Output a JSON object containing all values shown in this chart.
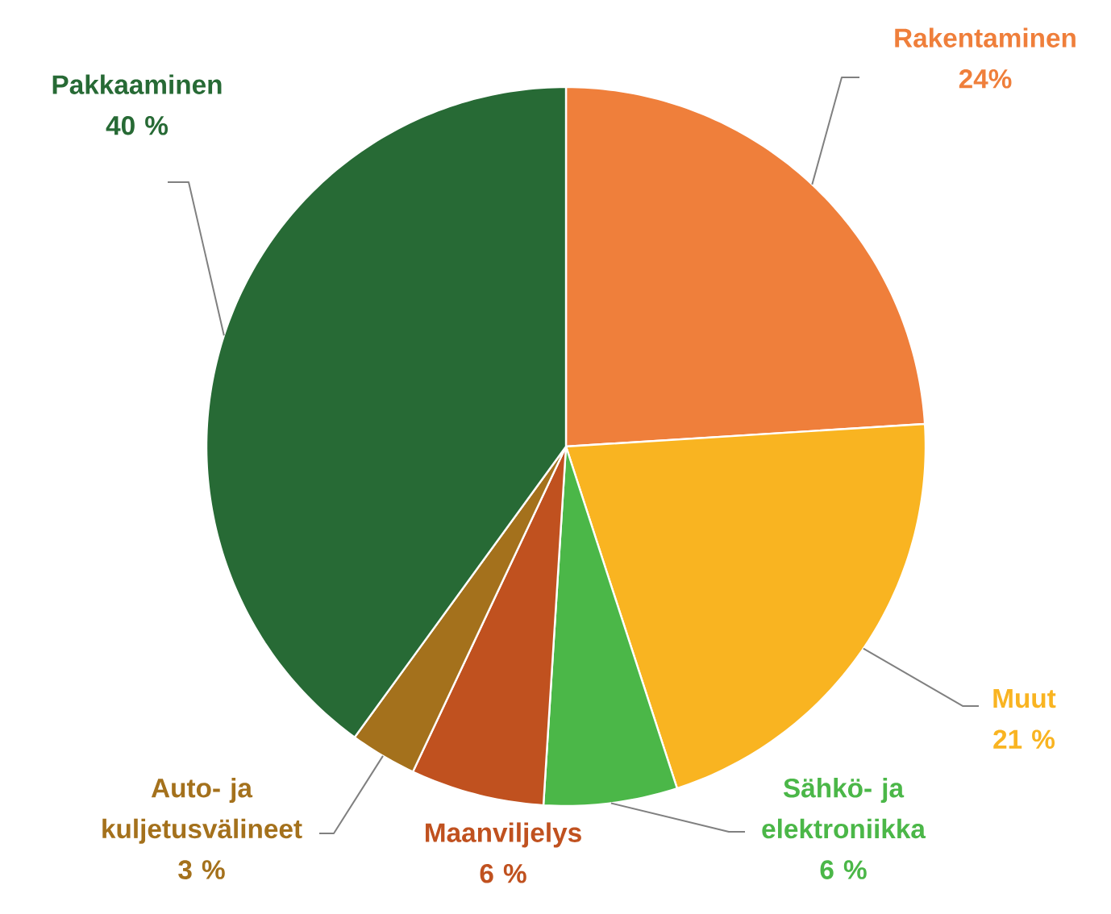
{
  "chart_data": {
    "type": "pie",
    "categories": [
      "Rakentaminen",
      "Muut",
      "Sähkö- ja elektroniikka",
      "Maanviljelys",
      "Auto- ja kuljetusvälineet",
      "Pakkaaminen"
    ],
    "values": [
      24,
      21,
      6,
      6,
      3,
      40
    ],
    "colors": [
      "#ef7f3b",
      "#f9b421",
      "#4bb748",
      "#c0511f",
      "#a4711c",
      "#276a35"
    ],
    "value_labels": [
      "24%",
      "21 %",
      "6 %",
      "6 %",
      "3 %",
      "40 %"
    ]
  }
}
